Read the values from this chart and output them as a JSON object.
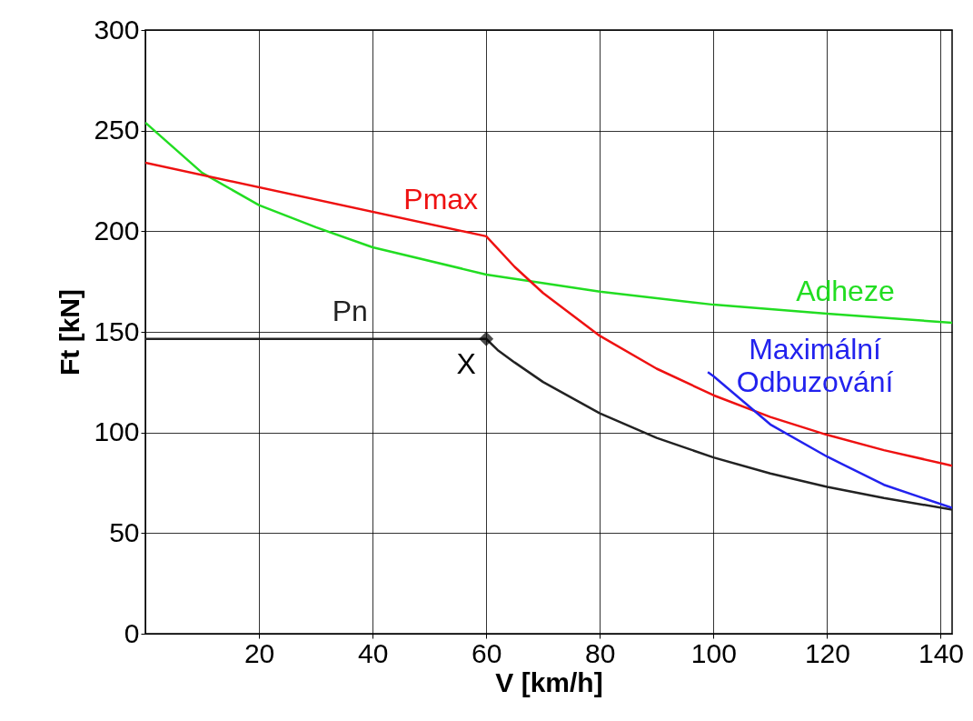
{
  "chart_data": {
    "type": "line",
    "xlabel": "V [km/h]",
    "ylabel": "Ft [kN]",
    "xlim": [
      0,
      142
    ],
    "xticks": [
      20,
      40,
      60,
      80,
      100,
      120,
      140
    ],
    "ylim": [
      0,
      300
    ],
    "yticks": [
      0,
      50,
      100,
      150,
      200,
      250,
      300
    ],
    "grid": true,
    "line_style": "solid",
    "series": [
      {
        "name": "Adheze",
        "color": "#22dd22",
        "x": [
          0,
          10,
          20,
          30,
          40,
          60,
          80,
          100,
          120,
          142
        ],
        "values": [
          254,
          229,
          213,
          202,
          192,
          178.5,
          170,
          163.5,
          159,
          154.5
        ]
      },
      {
        "name": "Pmax",
        "color": "#ee1111",
        "x": [
          0,
          60,
          65,
          70,
          80,
          90,
          100,
          110,
          120,
          130,
          142
        ],
        "values": [
          234,
          197.5,
          182.3,
          169.3,
          148,
          131.7,
          118.5,
          107.7,
          98.8,
          91.2,
          83.5
        ]
      },
      {
        "name": "Pn",
        "color": "#222222",
        "x": [
          0,
          60,
          62,
          65,
          70,
          80,
          90,
          100,
          110,
          120,
          130,
          142
        ],
        "values": [
          146.5,
          146.5,
          141,
          134.8,
          125.1,
          109.5,
          97.3,
          87.6,
          79.6,
          73,
          67.4,
          61.7
        ]
      },
      {
        "name": "Maximální Odbuzování",
        "color": "#2222ee",
        "x": [
          99,
          100,
          110,
          120,
          130,
          142
        ],
        "values": [
          130,
          128,
          104,
          88,
          74,
          62.5
        ]
      },
      {
        "type": "scatter",
        "marker": "diamond",
        "color": "#000000",
        "x": [
          60
        ],
        "values": [
          146.5
        ]
      }
    ],
    "annotations": [
      {
        "text": "X",
        "x": 60,
        "y": 146.5
      }
    ]
  }
}
